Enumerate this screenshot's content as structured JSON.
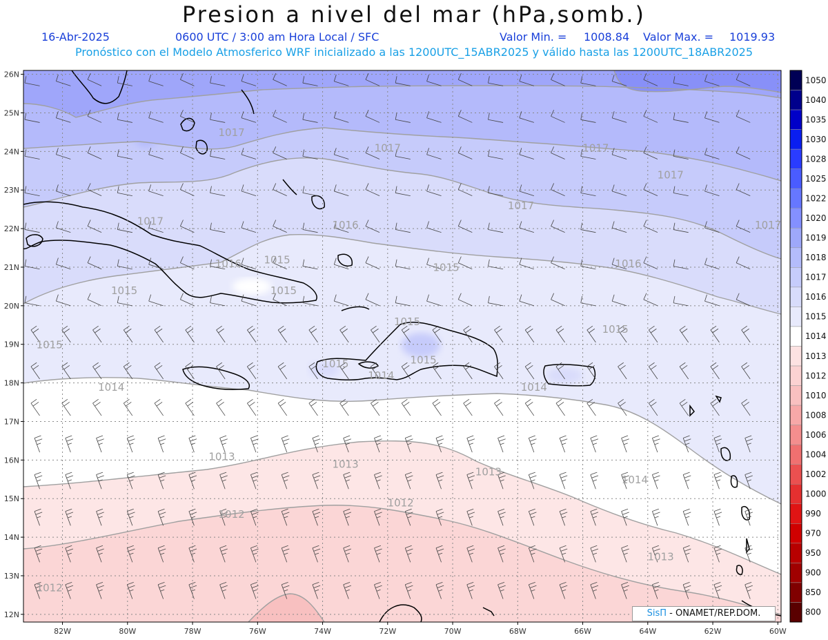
{
  "title": "Presion a nivel del mar (hPa,somb.)",
  "header": {
    "date": "16-Abr-2025",
    "time": "0600 UTC / 3:00 am Hora Local / SFC",
    "min_label": "Valor Min. =",
    "min_value": "1008.84",
    "max_label": "Valor Max. =",
    "max_value": "1019.93",
    "description": "Pronóstico con el Modelo Atmosferico WRF inicializado a las 1200UTC_15ABR2025 y válido hasta las  1200UTC_18ABR2025"
  },
  "axes": {
    "lat_labels": [
      "26N",
      "25N",
      "24N",
      "23N",
      "22N",
      "21N",
      "20N",
      "19N",
      "18N",
      "17N",
      "16N",
      "15N",
      "14N",
      "13N",
      "12N"
    ],
    "lon_labels": [
      "82W",
      "80W",
      "78W",
      "76W",
      "74W",
      "72W",
      "70W",
      "68W",
      "66W",
      "64W",
      "62W",
      "60W"
    ]
  },
  "colorbar": {
    "levels": [
      "1050",
      "1040",
      "1035",
      "1030",
      "1028",
      "1025",
      "1022",
      "1020",
      "1019",
      "1018",
      "1017",
      "1016",
      "1015",
      "1014",
      "1013",
      "1012",
      "1010",
      "1008",
      "1006",
      "1004",
      "1002",
      "1000",
      "990",
      "970",
      "950",
      "900",
      "850",
      "800"
    ],
    "colors": [
      "#000055",
      "#00008c",
      "#0000c8",
      "#0a1ef0",
      "#2a3cff",
      "#4a5cff",
      "#6677ff",
      "#8490ff",
      "#9ea8fa",
      "#b4bcfb",
      "#c6ccfb",
      "#d8dcfb",
      "#e8eafc",
      "#ffffff",
      "#fde2e2",
      "#fbd2d2",
      "#f9c0c0",
      "#f7a8a8",
      "#f48e8e",
      "#f07070",
      "#eb5050",
      "#e53030",
      "#e01414",
      "#d00000",
      "#b80000",
      "#a00000",
      "#800000",
      "#5a0000"
    ]
  },
  "contours": [
    {
      "value": "1017",
      "label_positions_lonlat": [
        [
          -76.8,
          24.4
        ],
        [
          -72.0,
          24.0
        ],
        [
          -65.6,
          24.0
        ],
        [
          -63.3,
          23.3
        ],
        [
          -67.9,
          22.5
        ],
        [
          -79.3,
          22.1
        ],
        [
          -60.3,
          22.0
        ]
      ]
    },
    {
      "value": "1016",
      "label_positions_lonlat": [
        [
          -73.3,
          22.0
        ],
        [
          -76.9,
          21.0
        ],
        [
          -64.6,
          21.0
        ]
      ]
    },
    {
      "value": "1015",
      "label_positions_lonlat": [
        [
          -75.4,
          21.1
        ],
        [
          -70.2,
          20.9
        ],
        [
          -80.1,
          20.3
        ],
        [
          -75.2,
          20.3
        ],
        [
          -71.4,
          19.5
        ],
        [
          -65.0,
          19.3
        ],
        [
          -82.4,
          18.9
        ],
        [
          -70.9,
          18.5
        ],
        [
          -73.6,
          18.4
        ]
      ]
    },
    {
      "value": "1014",
      "label_positions_lonlat": [
        [
          -80.5,
          17.8
        ],
        [
          -72.2,
          18.1
        ],
        [
          -67.5,
          17.8
        ],
        [
          -64.4,
          15.4
        ]
      ]
    },
    {
      "value": "1013",
      "label_positions_lonlat": [
        [
          -77.1,
          16.0
        ],
        [
          -73.3,
          15.8
        ],
        [
          -68.9,
          15.6
        ],
        [
          -63.6,
          13.4
        ]
      ]
    },
    {
      "value": "1012",
      "label_positions_lonlat": [
        [
          -76.8,
          14.5
        ],
        [
          -71.6,
          14.8
        ],
        [
          -82.4,
          12.6
        ]
      ]
    }
  ],
  "credit": {
    "brand": "SisΠ",
    "org": " - ONAMET/REP.DOM."
  }
}
